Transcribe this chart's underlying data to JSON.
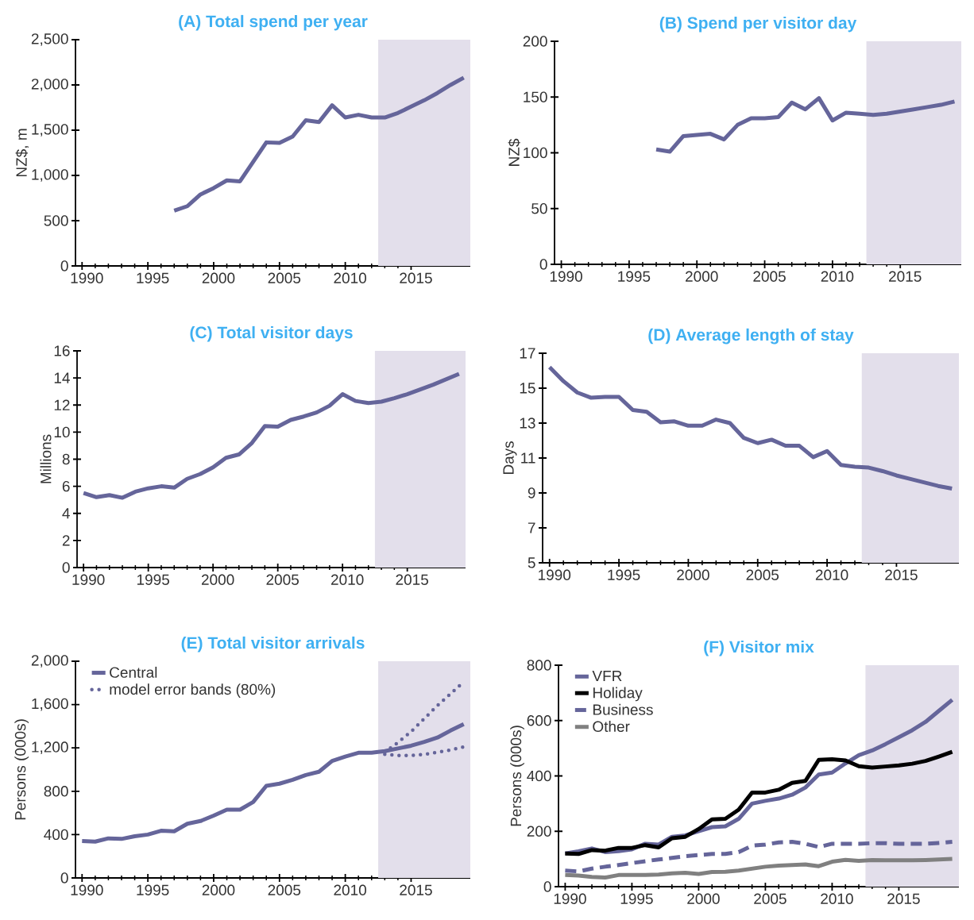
{
  "chart_data": [
    {
      "type": "line",
      "title": "(A) Total spend per year",
      "ylabel": "NZ$, m",
      "x": [
        1997,
        1998,
        1999,
        2000,
        2001,
        2002,
        2003,
        2004,
        2005,
        2006,
        2007,
        2008,
        2009,
        2010,
        2011,
        2012,
        2013,
        2014,
        2015,
        2016,
        2017,
        2018,
        2019
      ],
      "series": [
        {
          "color": "#65659a",
          "line_style": "solid",
          "values": [
            610,
            660,
            790,
            860,
            945,
            935,
            1150,
            1365,
            1360,
            1430,
            1610,
            1590,
            1775,
            1640,
            1670,
            1640,
            1640,
            1690,
            1760,
            1830,
            1910,
            2000,
            2080
          ]
        }
      ],
      "xlim": [
        1989.5,
        2019.5
      ],
      "xticks": [
        1990,
        1995,
        2000,
        2005,
        2010,
        2015
      ],
      "ylim": [
        0,
        2500
      ],
      "yticks": [
        0,
        {
          "value": 500,
          "label": "500"
        },
        {
          "value": 1000,
          "label": "1,000"
        },
        {
          "value": 1500,
          "label": "1,500"
        },
        {
          "value": 2000,
          "label": "2,000"
        },
        {
          "value": 2500,
          "label": "2,500"
        }
      ],
      "bands": [
        {
          "axis": "x",
          "from": 2012.5,
          "to": 2019.5,
          "color": "#e3dfeb"
        }
      ]
    },
    {
      "type": "line",
      "title": "(B) Spend per visitor day",
      "ylabel": "NZ$",
      "x": [
        1997,
        1998,
        1999,
        2000,
        2001,
        2002,
        2003,
        2004,
        2005,
        2006,
        2007,
        2008,
        2009,
        2010,
        2011,
        2012,
        2013,
        2014,
        2015,
        2016,
        2017,
        2018,
        2019
      ],
      "series": [
        {
          "color": "#65659a",
          "line_style": "solid",
          "values": [
            103,
            101,
            115,
            116,
            117,
            112,
            125,
            131,
            131,
            132,
            145,
            139,
            149,
            129,
            136,
            135,
            134,
            135,
            137,
            139,
            141,
            143,
            146
          ]
        }
      ],
      "xlim": [
        1989.5,
        2019.5
      ],
      "xticks": [
        1990,
        1995,
        2000,
        2005,
        2010,
        2015
      ],
      "ylim": [
        0,
        200
      ],
      "yticks": [
        0,
        50,
        100,
        150,
        200
      ],
      "bands": [
        {
          "axis": "x",
          "from": 2012.5,
          "to": 2019.5,
          "color": "#e3dfeb"
        }
      ]
    },
    {
      "type": "line",
      "title": "(C) Total visitor days",
      "ylabel": "Millions",
      "x": [
        1990,
        1991,
        1992,
        1993,
        1994,
        1995,
        1996,
        1997,
        1998,
        1999,
        2000,
        2001,
        2002,
        2003,
        2004,
        2005,
        2006,
        2007,
        2008,
        2009,
        2010,
        2011,
        2012,
        2013,
        2014,
        2015,
        2016,
        2017,
        2018,
        2019
      ],
      "series": [
        {
          "color": "#65659a",
          "line_style": "solid",
          "values": [
            5.5,
            5.2,
            5.35,
            5.15,
            5.6,
            5.85,
            6.0,
            5.9,
            6.55,
            6.9,
            7.4,
            8.1,
            8.35,
            9.2,
            10.45,
            10.4,
            10.9,
            11.15,
            11.45,
            11.95,
            12.8,
            12.3,
            12.15,
            12.25,
            12.5,
            12.8,
            13.15,
            13.5,
            13.9,
            14.3
          ]
        }
      ],
      "xlim": [
        1989.5,
        2019.5
      ],
      "xticks": [
        1990,
        1995,
        2000,
        2005,
        2010,
        2015
      ],
      "ylim": [
        0,
        16
      ],
      "yticks": [
        0,
        2,
        4,
        6,
        8,
        10,
        12,
        14,
        16
      ],
      "bands": [
        {
          "axis": "x",
          "from": 2012.5,
          "to": 2019.5,
          "color": "#e3dfeb"
        }
      ]
    },
    {
      "type": "line",
      "title": "(D) Average length of stay",
      "ylabel": "Days",
      "x": [
        1990,
        1991,
        1992,
        1993,
        1994,
        1995,
        1996,
        1997,
        1998,
        1999,
        2000,
        2001,
        2002,
        2003,
        2004,
        2005,
        2006,
        2007,
        2008,
        2009,
        2010,
        2011,
        2012,
        2013,
        2014,
        2015,
        2016,
        2017,
        2018,
        2019
      ],
      "series": [
        {
          "color": "#65659a",
          "line_style": "solid",
          "values": [
            16.2,
            15.4,
            14.75,
            14.45,
            14.5,
            14.5,
            13.75,
            13.65,
            13.05,
            13.1,
            12.85,
            12.85,
            13.2,
            13.0,
            12.15,
            11.85,
            12.05,
            11.7,
            11.7,
            11.05,
            11.4,
            10.6,
            10.5,
            10.45,
            10.25,
            10.0,
            9.8,
            9.6,
            9.4,
            9.25
          ]
        }
      ],
      "xlim": [
        1989.5,
        2019.5
      ],
      "xticks": [
        1990,
        1995,
        2000,
        2005,
        2010,
        2015
      ],
      "ylim": [
        5,
        17
      ],
      "yticks": [
        5,
        7,
        9,
        11,
        13,
        15,
        17
      ],
      "bands": [
        {
          "axis": "x",
          "from": 2012.5,
          "to": 2019.5,
          "color": "#e3dfeb"
        }
      ]
    },
    {
      "type": "line",
      "title": "(E) Total visitor arrivals",
      "ylabel": "Persons (000s)",
      "legend": "top left",
      "x": [
        1990,
        1991,
        1992,
        1993,
        1994,
        1995,
        1996,
        1997,
        1998,
        1999,
        2000,
        2001,
        2002,
        2003,
        2004,
        2005,
        2006,
        2007,
        2008,
        2009,
        2010,
        2011,
        2012,
        2013,
        2014,
        2015,
        2016,
        2017,
        2018,
        2019
      ],
      "series": [
        {
          "name": "Central",
          "color": "#65659a",
          "line_style": "solid",
          "values": [
            340,
            335,
            365,
            360,
            385,
            400,
            435,
            430,
            500,
            525,
            575,
            630,
            630,
            700,
            850,
            870,
            905,
            950,
            980,
            1080,
            1120,
            1155,
            1155,
            1170,
            1195,
            1220,
            1255,
            1295,
            1360,
            1420
          ]
        },
        {
          "name": "model error bands (80%)",
          "color": "#65659a",
          "line_style": "dotted",
          "x": [
            2013,
            2014,
            2015,
            2016,
            2017,
            2018,
            2019
          ],
          "values": [
            1160,
            1250,
            1350,
            1470,
            1590,
            1700,
            1810
          ]
        },
        {
          "color": "#65659a",
          "line_style": "dotted",
          "x": [
            2013,
            2014,
            2015,
            2016,
            2017,
            2018,
            2019
          ],
          "values": [
            1140,
            1130,
            1130,
            1140,
            1160,
            1180,
            1210
          ]
        }
      ],
      "xlim": [
        1989.5,
        2019.5
      ],
      "xticks": [
        1990,
        1995,
        2000,
        2005,
        2010,
        2015
      ],
      "ylim": [
        0,
        2000
      ],
      "yticks": [
        0,
        {
          "value": 400,
          "label": "400"
        },
        {
          "value": 800,
          "label": "800"
        },
        {
          "value": 1200,
          "label": "1,200"
        },
        {
          "value": 1600,
          "label": "1,600"
        },
        {
          "value": 2000,
          "label": "2,000"
        }
      ],
      "bands": [
        {
          "axis": "x",
          "from": 2012.5,
          "to": 2019.5,
          "color": "#e3dfeb"
        }
      ]
    },
    {
      "type": "line",
      "title": "(F) Visitor mix",
      "ylabel": "Persons (000s)",
      "legend": "top left",
      "x": [
        1990,
        1991,
        1992,
        1993,
        1994,
        1995,
        1996,
        1997,
        1998,
        1999,
        2000,
        2001,
        2002,
        2003,
        2004,
        2005,
        2006,
        2007,
        2008,
        2009,
        2010,
        2011,
        2012,
        2013,
        2014,
        2015,
        2016,
        2017,
        2018,
        2019
      ],
      "series": [
        {
          "name": "VFR",
          "color": "#65659a",
          "line_style": "solid",
          "values": [
            120,
            128,
            138,
            125,
            128,
            135,
            155,
            152,
            180,
            185,
            200,
            215,
            218,
            245,
            300,
            310,
            318,
            332,
            358,
            405,
            412,
            445,
            475,
            492,
            515,
            540,
            565,
            595,
            635,
            675
          ]
        },
        {
          "name": "Holiday",
          "color": "#000000",
          "line_style": "solid",
          "values": [
            120,
            118,
            132,
            130,
            140,
            140,
            150,
            142,
            175,
            180,
            208,
            243,
            245,
            278,
            340,
            340,
            350,
            375,
            382,
            458,
            460,
            456,
            435,
            430,
            434,
            438,
            444,
            454,
            470,
            487
          ]
        },
        {
          "name": "Business",
          "color": "#65659a",
          "line_style": "dashed",
          "values": [
            58,
            55,
            65,
            72,
            78,
            85,
            92,
            98,
            104,
            110,
            114,
            118,
            118,
            125,
            148,
            152,
            160,
            162,
            155,
            143,
            155,
            155,
            155,
            157,
            157,
            155,
            155,
            155,
            158,
            162
          ]
        },
        {
          "name": "Other",
          "color": "#808080",
          "line_style": "solid",
          "values": [
            42,
            40,
            35,
            33,
            42,
            42,
            42,
            44,
            48,
            50,
            46,
            53,
            54,
            58,
            65,
            72,
            76,
            78,
            80,
            74,
            90,
            97,
            93,
            96,
            95,
            95,
            95,
            96,
            98,
            100
          ]
        }
      ],
      "xlim": [
        1989.5,
        2019.5
      ],
      "xticks": [
        1990,
        1995,
        2000,
        2005,
        2010,
        2015
      ],
      "ylim": [
        0,
        800
      ],
      "yticks": [
        0,
        200,
        400,
        600,
        800
      ],
      "bands": [
        {
          "axis": "x",
          "from": 2012.5,
          "to": 2019.5,
          "color": "#e3dfeb"
        }
      ]
    }
  ]
}
